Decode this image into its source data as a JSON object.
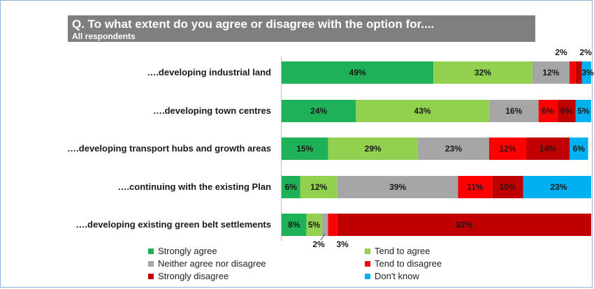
{
  "title": {
    "main": "Q. To what extent do you agree or disagree with the option for....",
    "sub": "All respondents"
  },
  "colors": {
    "strongly_agree": "#1fb157",
    "tend_to_agree": "#92d050",
    "neither": "#a6a6a6",
    "tend_to_disagree": "#ff0000",
    "strongly_disagree": "#c00000",
    "dont_know": "#00b0f0"
  },
  "chart_data": {
    "type": "bar",
    "orientation": "horizontal",
    "stacked": true,
    "categories": [
      "….developing industrial land",
      "….developing town centres",
      "….developing transport hubs and growth areas",
      "….continuing with the existing Plan",
      "….developing existing green belt settlements"
    ],
    "series": [
      {
        "name": "Strongly agree",
        "values": [
          49,
          24,
          15,
          6,
          8
        ]
      },
      {
        "name": "Tend to agree",
        "values": [
          32,
          43,
          29,
          12,
          5
        ]
      },
      {
        "name": "Neither agree nor disagree",
        "values": [
          12,
          16,
          23,
          39,
          2
        ]
      },
      {
        "name": "Tend to disagree",
        "values": [
          2,
          6,
          12,
          11,
          3
        ]
      },
      {
        "name": "Strongly disagree",
        "values": [
          2,
          6,
          14,
          10,
          82
        ]
      },
      {
        "name": "Don't know",
        "values": [
          3,
          5,
          6,
          23,
          0
        ]
      }
    ],
    "value_labels": [
      [
        "49%",
        "32%",
        "12%",
        "2%",
        "2%",
        "3%"
      ],
      [
        "24%",
        "43%",
        "16%",
        "6%",
        "6%",
        "5%"
      ],
      [
        "15%",
        "29%",
        "23%",
        "12%",
        "14%",
        "6%"
      ],
      [
        "6%",
        "12%",
        "39%",
        "11%",
        "10%",
        "23%"
      ],
      [
        "8%",
        "5%",
        "2%",
        "3%",
        "82%",
        ""
      ]
    ],
    "xlim": [
      0,
      100
    ],
    "legend_position": "bottom",
    "grid": false
  }
}
